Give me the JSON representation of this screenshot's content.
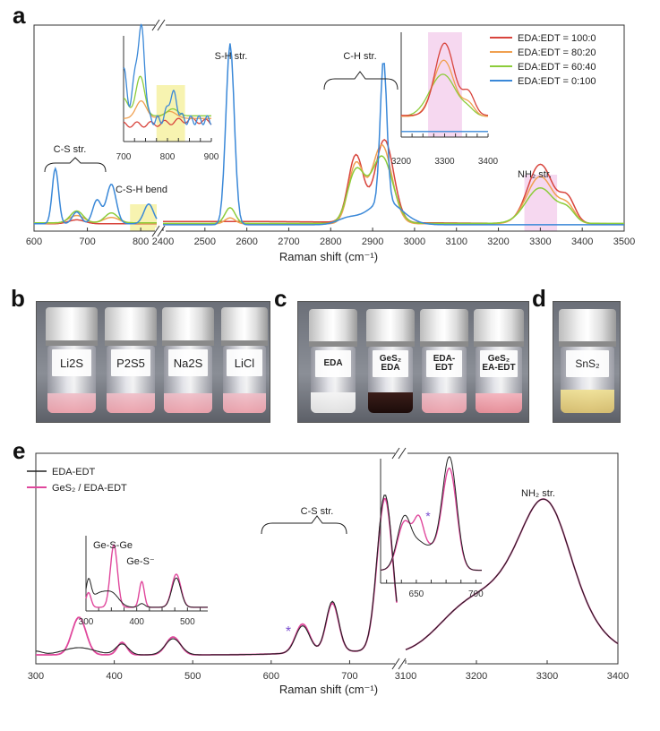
{
  "panels": {
    "a": "a",
    "b": "b",
    "c": "c",
    "d": "d",
    "e": "e"
  },
  "colors": {
    "r100": "#d8443c",
    "r80": "#f0a050",
    "r60": "#8ccc3a",
    "r0": "#3a88d8",
    "edt": "#222222",
    "ges": "#e0479c",
    "star": "#7a4fd0",
    "yellowHl": "#f7f3b0",
    "pinkHl": "#f6d8f0"
  },
  "panel_a": {
    "legend": [
      "EDA:EDT = 100:0",
      "EDA:EDT = 80:20",
      "EDA:EDT = 60:40",
      "EDA:EDT = 0:100"
    ],
    "annotations": {
      "cs": "C-S str.",
      "csh": "C-S-H bend",
      "sh": "S-H str.",
      "ch": "C-H str.",
      "nh": "NH₂ str."
    },
    "xlabel": "Raman shift (cm⁻¹)",
    "ticks_left": [
      "600",
      "700",
      "800"
    ],
    "ticks_right": [
      "2400",
      "2500",
      "2600",
      "2700",
      "2800",
      "2900",
      "3000",
      "3100",
      "3200",
      "3300",
      "3400",
      "3500"
    ],
    "inset1_ticks": [
      "700",
      "800",
      "900"
    ],
    "inset2_ticks": [
      "3200",
      "3300",
      "3400"
    ]
  },
  "panel_b": {
    "vials": [
      "Li2S",
      "P2S5",
      "Na2S",
      "LiCl"
    ]
  },
  "panel_c": {
    "vials": [
      "EDA",
      "GeS₂\nEDA",
      "EDA-EDT",
      "GeS₂\nEA-EDT"
    ]
  },
  "panel_d": {
    "vials": [
      "SnS₂"
    ]
  },
  "panel_e": {
    "legend": [
      "EDA-EDT",
      "GeS₂ / EDA-EDT"
    ],
    "annotations": {
      "gesge": "Ge-S-Ge",
      "ges": "Ge-S⁻",
      "cs": "C-S str.",
      "nh": "NH₂ str.",
      "star": "*"
    },
    "xlabel": "Raman shift (cm⁻¹)",
    "ticks_left": [
      "300",
      "400",
      "500",
      "600",
      "700"
    ],
    "ticks_right": [
      "3100",
      "3200",
      "3300",
      "3400"
    ],
    "inset1_ticks": [
      "300",
      "400",
      "500"
    ],
    "inset2_ticks": [
      "650",
      "700"
    ]
  },
  "chart_data": [
    {
      "type": "line",
      "title": "a",
      "xlabel": "Raman shift (cm⁻¹)",
      "xlim_segments": [
        [
          600,
          830
        ],
        [
          2400,
          3500
        ]
      ],
      "series": [
        {
          "name": "EDA:EDT = 100:0",
          "peaks": [
            [
              2860,
              0.36
            ],
            [
              2925,
              0.46
            ],
            [
              3300,
              0.33
            ],
            [
              3360,
              0.15
            ]
          ]
        },
        {
          "name": "EDA:EDT = 80:20",
          "peaks": [
            [
              2860,
              0.32
            ],
            [
              2920,
              0.42
            ],
            [
              3300,
              0.26
            ]
          ]
        },
        {
          "name": "EDA:EDT = 60:40",
          "peaks": [
            [
              2860,
              0.28
            ],
            [
              2920,
              0.36
            ],
            [
              3300,
              0.19
            ],
            [
              2560,
              0.08
            ]
          ]
        },
        {
          "name": "EDA:EDT = 0:100",
          "peaks": [
            [
              640,
              0.3
            ],
            [
              740,
              0.25
            ],
            [
              815,
              0.12
            ],
            [
              2560,
              0.93
            ],
            [
              2925,
              0.78
            ]
          ]
        }
      ]
    },
    {
      "type": "line",
      "title": "e",
      "xlabel": "Raman shift (cm⁻¹)",
      "xlim_segments": [
        [
          300,
          760
        ],
        [
          3100,
          3400
        ]
      ],
      "series": [
        {
          "name": "EDA-EDT",
          "peaks": [
            [
              640,
              0.14
            ],
            [
              678,
              0.28
            ],
            [
              745,
              0.9
            ],
            [
              3285,
              0.88
            ]
          ]
        },
        {
          "name": "GeS₂ / EDA-EDT",
          "peaks": [
            [
              355,
              0.22
            ],
            [
              410,
              0.07
            ],
            [
              475,
              0.1
            ],
            [
              640,
              0.16
            ],
            [
              678,
              0.27
            ],
            [
              745,
              0.88
            ],
            [
              3285,
              0.88
            ]
          ]
        }
      ]
    }
  ]
}
